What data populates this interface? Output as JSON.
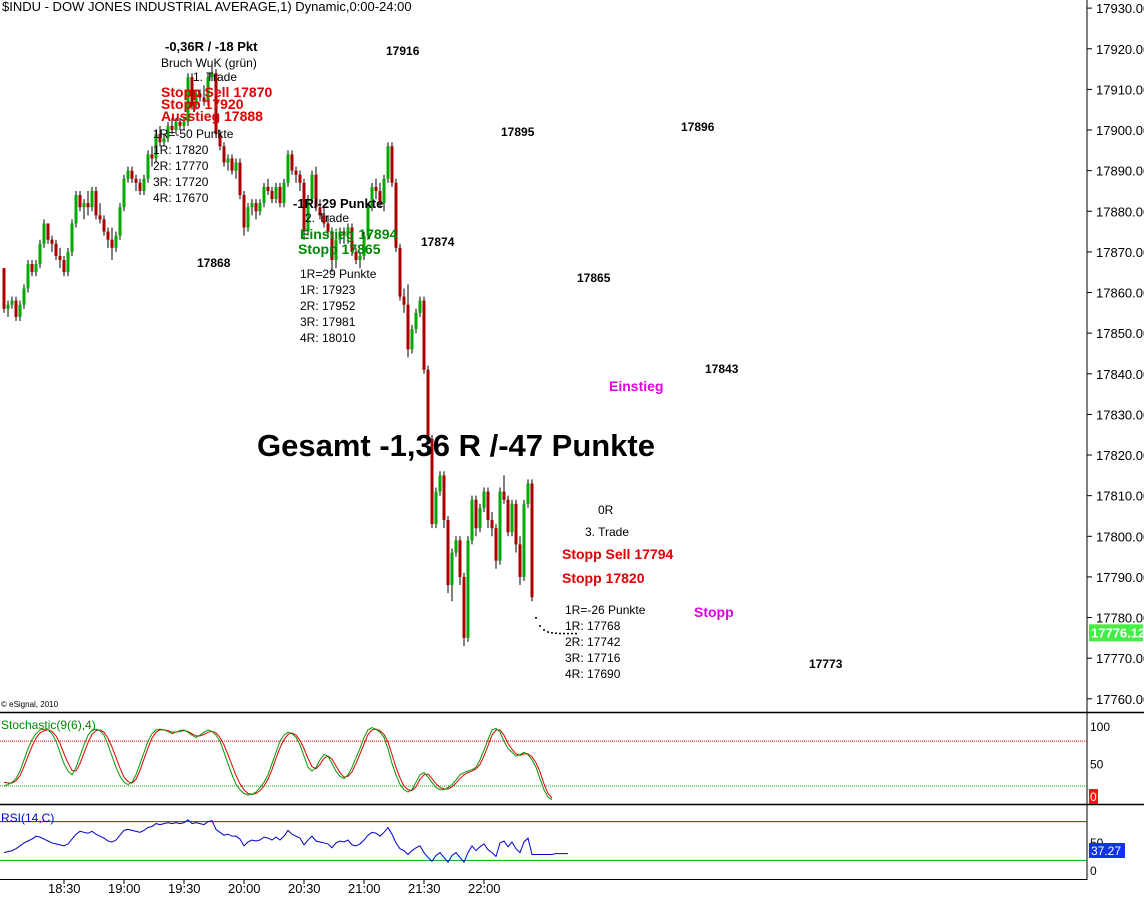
{
  "header": {
    "title": "$INDU - DOW JONES INDUSTRIAL AVERAGE,1) Dynamic,0:00-24:00",
    "copyright": "© eSignal, 2010"
  },
  "colors": {
    "up": "#00aa00",
    "down": "#aa0000",
    "wick": "#000000",
    "border": "#000000",
    "grid_red": "#cc0000",
    "grid_green": "#00aa00",
    "stoch_k": "#009900",
    "stoch_d": "#dd0000",
    "rsi": "#0000cc",
    "last_price_bg": "#44ee44",
    "rsi_value_bg": "#1133ee",
    "stoch_value_bg": "#ff1111",
    "annot_red": "#e00000",
    "annot_green": "#008800",
    "annot_magenta": "#e000e0"
  },
  "chart_data": {
    "type": "candlestick",
    "price_axis": {
      "ylim": [
        17757,
        17932
      ],
      "ticks": [
        17930,
        17920,
        17910,
        17900,
        17890,
        17880,
        17870,
        17860,
        17850,
        17840,
        17830,
        17820,
        17810,
        17800,
        17790,
        17780,
        17770,
        17760
      ],
      "tick_labels": [
        "17930.00",
        "17920.00",
        "17910.00",
        "17900.00",
        "17890.00",
        "17880.00",
        "17870.00",
        "17860.00",
        "17850.00",
        "17840.00",
        "17830.00",
        "17820.00",
        "17810.00",
        "17800.00",
        "17790.00",
        "17780.00",
        "17770.00",
        "17760.00"
      ],
      "last_price_value": 17776.12,
      "last_price_label": "17776.12"
    },
    "time_axis": {
      "start": "18:00",
      "interval_minutes": 2,
      "tick_minutes": [
        30,
        60,
        90,
        120,
        150,
        180,
        210,
        240
      ],
      "tick_labels": [
        "18:30",
        "19:00",
        "19:30",
        "20:00",
        "20:30",
        "21:00",
        "21:30",
        "22:00"
      ]
    },
    "candles_ohlc": [
      [
        17866,
        17866,
        17855,
        17856
      ],
      [
        17856,
        17858,
        17854,
        17857
      ],
      [
        17857,
        17859,
        17856,
        17858
      ],
      [
        17858,
        17859,
        17853,
        17854
      ],
      [
        17854,
        17858,
        17853,
        17857
      ],
      [
        17857,
        17862,
        17856,
        17861
      ],
      [
        17861,
        17868,
        17860,
        17867
      ],
      [
        17867,
        17868,
        17864,
        17865
      ],
      [
        17865,
        17868,
        17864,
        17867
      ],
      [
        17867,
        17873,
        17866,
        17872
      ],
      [
        17872,
        17878,
        17871,
        17877
      ],
      [
        17877,
        17877,
        17872,
        17873
      ],
      [
        17873,
        17874,
        17870,
        17872
      ],
      [
        17872,
        17873,
        17868,
        17869
      ],
      [
        17869,
        17871,
        17866,
        17868
      ],
      [
        17868,
        17869,
        17864,
        17865
      ],
      [
        17865,
        17871,
        17864,
        17870
      ],
      [
        17870,
        17878,
        17869,
        17877
      ],
      [
        17877,
        17885,
        17876,
        17884
      ],
      [
        17884,
        17885,
        17880,
        17881
      ],
      [
        17881,
        17883,
        17878,
        17882
      ],
      [
        17882,
        17885,
        17879,
        17881
      ],
      [
        17881,
        17886,
        17880,
        17885
      ],
      [
        17885,
        17886,
        17878,
        17879
      ],
      [
        17879,
        17882,
        17877,
        17878
      ],
      [
        17878,
        17879,
        17874,
        17875
      ],
      [
        17875,
        17876,
        17871,
        17873
      ],
      [
        17873,
        17876,
        17868,
        17871
      ],
      [
        17871,
        17875,
        17870,
        17874
      ],
      [
        17874,
        17882,
        17873,
        17881
      ],
      [
        17881,
        17889,
        17880,
        17888
      ],
      [
        17888,
        17891,
        17887,
        17890
      ],
      [
        17890,
        17891,
        17887,
        17888
      ],
      [
        17888,
        17889,
        17885,
        17887
      ],
      [
        17887,
        17888,
        17884,
        17885
      ],
      [
        17885,
        17889,
        17884,
        17888
      ],
      [
        17888,
        17895,
        17887,
        17894
      ],
      [
        17894,
        17896,
        17891,
        17893
      ],
      [
        17893,
        17900,
        17892,
        17899
      ],
      [
        17899,
        17901,
        17896,
        17897
      ],
      [
        17897,
        17899,
        17896,
        17898
      ],
      [
        17898,
        17902,
        17897,
        17901
      ],
      [
        17901,
        17903,
        17899,
        17900
      ],
      [
        17900,
        17903,
        17899,
        17902
      ],
      [
        17902,
        17903,
        17900,
        17901
      ],
      [
        17901,
        17903,
        17900,
        17902
      ],
      [
        17902,
        17914,
        17901,
        17913
      ],
      [
        17913,
        17914,
        17905,
        17906
      ],
      [
        17906,
        17910,
        17905,
        17909
      ],
      [
        17909,
        17910,
        17907,
        17908
      ],
      [
        17908,
        17911,
        17906,
        17907
      ],
      [
        17907,
        17914,
        17906,
        17913
      ],
      [
        17913,
        17916,
        17912,
        17914
      ],
      [
        17914,
        17915,
        17898,
        17899
      ],
      [
        17899,
        17900,
        17895,
        17896
      ],
      [
        17896,
        17897,
        17891,
        17892
      ],
      [
        17892,
        17894,
        17890,
        17893
      ],
      [
        17893,
        17894,
        17889,
        17890
      ],
      [
        17890,
        17893,
        17888,
        17892
      ],
      [
        17892,
        17893,
        17883,
        17884
      ],
      [
        17884,
        17885,
        17874,
        17876
      ],
      [
        17876,
        17882,
        17875,
        17881
      ],
      [
        17881,
        17883,
        17879,
        17882
      ],
      [
        17882,
        17883,
        17878,
        17880
      ],
      [
        17880,
        17883,
        17879,
        17882
      ],
      [
        17882,
        17887,
        17881,
        17886
      ],
      [
        17886,
        17888,
        17884,
        17885
      ],
      [
        17885,
        17886,
        17882,
        17883
      ],
      [
        17883,
        17887,
        17882,
        17886
      ],
      [
        17886,
        17887,
        17881,
        17882
      ],
      [
        17882,
        17888,
        17881,
        17887
      ],
      [
        17887,
        17895,
        17886,
        17894
      ],
      [
        17894,
        17895,
        17889,
        17890
      ],
      [
        17890,
        17891,
        17887,
        17889
      ],
      [
        17889,
        17890,
        17885,
        17887
      ],
      [
        17887,
        17888,
        17873,
        17875
      ],
      [
        17875,
        17884,
        17874,
        17883
      ],
      [
        17883,
        17890,
        17882,
        17889
      ],
      [
        17889,
        17891,
        17880,
        17881
      ],
      [
        17881,
        17883,
        17878,
        17879
      ],
      [
        17879,
        17881,
        17876,
        17877
      ],
      [
        17877,
        17879,
        17874,
        17875
      ],
      [
        17875,
        17876,
        17865,
        17868
      ],
      [
        17868,
        17874,
        17866,
        17873
      ],
      [
        17873,
        17876,
        17872,
        17875
      ],
      [
        17875,
        17876,
        17872,
        17874
      ],
      [
        17874,
        17877,
        17872,
        17876
      ],
      [
        17876,
        17877,
        17869,
        17870
      ],
      [
        17870,
        17871,
        17867,
        17868
      ],
      [
        17868,
        17870,
        17866,
        17869
      ],
      [
        17869,
        17875,
        17868,
        17874
      ],
      [
        17874,
        17882,
        17873,
        17881
      ],
      [
        17881,
        17887,
        17880,
        17886
      ],
      [
        17886,
        17888,
        17883,
        17885
      ],
      [
        17885,
        17887,
        17881,
        17882
      ],
      [
        17882,
        17889,
        17880,
        17888
      ],
      [
        17888,
        17897,
        17887,
        17896
      ],
      [
        17896,
        17897,
        17886,
        17887
      ],
      [
        17887,
        17888,
        17870,
        17871
      ],
      [
        17871,
        17872,
        17858,
        17859
      ],
      [
        17859,
        17861,
        17855,
        17857
      ],
      [
        17857,
        17862,
        17844,
        17846
      ],
      [
        17846,
        17852,
        17845,
        17851
      ],
      [
        17851,
        17856,
        17850,
        17855
      ],
      [
        17855,
        17859,
        17854,
        17858
      ],
      [
        17858,
        17859,
        17840,
        17841
      ],
      [
        17841,
        17842,
        17823,
        17824
      ],
      [
        17824,
        17825,
        17802,
        17803
      ],
      [
        17803,
        17812,
        17802,
        17811
      ],
      [
        17811,
        17816,
        17810,
        17815
      ],
      [
        17815,
        17816,
        17802,
        17804
      ],
      [
        17804,
        17805,
        17786,
        17788
      ],
      [
        17788,
        17797,
        17784,
        17796
      ],
      [
        17796,
        17800,
        17795,
        17799
      ],
      [
        17799,
        17800,
        17788,
        17790
      ],
      [
        17790,
        17791,
        17773,
        17775
      ],
      [
        17775,
        17800,
        17774,
        17799
      ],
      [
        17799,
        17810,
        17798,
        17809
      ],
      [
        17809,
        17810,
        17800,
        17802
      ],
      [
        17802,
        17808,
        17801,
        17807
      ],
      [
        17807,
        17812,
        17806,
        17811
      ],
      [
        17811,
        17812,
        17802,
        17804
      ],
      [
        17804,
        17806,
        17800,
        17802
      ],
      [
        17802,
        17803,
        17792,
        17794
      ],
      [
        17794,
        17812,
        17793,
        17811
      ],
      [
        17811,
        17815,
        17808,
        17809
      ],
      [
        17809,
        17810,
        17800,
        17801
      ],
      [
        17801,
        17809,
        17800,
        17808
      ],
      [
        17808,
        17809,
        17796,
        17798
      ],
      [
        17798,
        17800,
        17788,
        17790
      ],
      [
        17790,
        17809,
        17789,
        17808
      ],
      [
        17808,
        17814,
        17807,
        17813
      ],
      [
        17813,
        17814,
        17784,
        17785
      ]
    ],
    "tail_points": [
      17780,
      17778,
      17777,
      17776.5,
      17776.3,
      17776.2,
      17776.12,
      17776.12,
      17776.12,
      17776.12,
      17776.12
    ],
    "stochastic": {
      "label": "Stochastic(9(6),4)",
      "ylim": [
        0,
        100
      ],
      "ticks": [
        100,
        50
      ],
      "tick_labels": [
        "100",
        "50"
      ],
      "overbought": 80,
      "oversold": 20,
      "current_label": "0",
      "k": [
        20,
        22,
        25,
        30,
        40,
        55,
        70,
        82,
        90,
        95,
        96,
        95,
        90,
        80,
        65,
        50,
        40,
        35,
        45,
        60,
        75,
        88,
        95,
        96,
        94,
        88,
        75,
        60,
        45,
        33,
        25,
        22,
        25,
        35,
        50,
        65,
        80,
        90,
        95,
        96,
        95,
        93,
        90,
        92,
        94,
        95,
        92,
        88,
        85,
        88,
        92,
        95,
        93,
        88,
        80,
        65,
        50,
        35,
        22,
        15,
        10,
        8,
        9,
        12,
        18,
        25,
        35,
        50,
        65,
        80,
        88,
        92,
        90,
        85,
        75,
        60,
        45,
        40,
        45,
        55,
        62,
        60,
        50,
        40,
        33,
        30,
        35,
        45,
        58,
        70,
        85,
        95,
        98,
        96,
        92,
        85,
        70,
        50,
        35,
        22,
        15,
        12,
        15,
        25,
        35,
        38,
        32,
        25,
        18,
        15,
        15,
        18,
        22,
        28,
        35,
        38,
        40,
        42,
        45,
        55,
        68,
        82,
        95,
        97,
        92,
        80,
        70,
        65,
        60,
        62,
        65,
        62,
        55,
        45,
        30,
        15,
        5,
        2
      ],
      "d": [
        25,
        24,
        24,
        27,
        34,
        46,
        60,
        73,
        84,
        91,
        94,
        95,
        93,
        87,
        77,
        63,
        51,
        41,
        40,
        50,
        64,
        78,
        89,
        94,
        95,
        92,
        84,
        72,
        58,
        44,
        32,
        26,
        24,
        29,
        41,
        56,
        71,
        84,
        92,
        95,
        95,
        94,
        92,
        92,
        93,
        94,
        93,
        90,
        87,
        87,
        89,
        92,
        93,
        91,
        85,
        75,
        62,
        48,
        34,
        23,
        15,
        10,
        9,
        10,
        14,
        20,
        29,
        42,
        57,
        71,
        82,
        89,
        91,
        88,
        81,
        70,
        57,
        46,
        43,
        49,
        57,
        60,
        56,
        47,
        38,
        32,
        33,
        39,
        50,
        63,
        76,
        89,
        95,
        96,
        94,
        89,
        79,
        62,
        45,
        31,
        20,
        15,
        14,
        19,
        29,
        35,
        36,
        30,
        23,
        18,
        16,
        16,
        19,
        24,
        30,
        35,
        38,
        40,
        43,
        49,
        60,
        74,
        88,
        95,
        95,
        88,
        77,
        69,
        63,
        61,
        63,
        63,
        59,
        51,
        39,
        23,
        10,
        4
      ]
    },
    "rsi": {
      "label": "RSI(14,C)",
      "ylim": [
        0,
        100
      ],
      "ticks": [
        50,
        0
      ],
      "tick_labels": [
        "50",
        "0"
      ],
      "upper": 70,
      "lower": 30,
      "current_value": 37.27,
      "current_label": "37.27",
      "values": [
        38,
        39,
        40,
        42,
        45,
        48,
        50,
        52,
        55,
        54,
        52,
        50,
        48,
        47,
        46,
        45,
        47,
        52,
        57,
        60,
        59,
        58,
        60,
        57,
        55,
        53,
        50,
        49,
        51,
        56,
        61,
        62,
        61,
        60,
        59,
        61,
        64,
        65,
        68,
        67,
        68,
        69,
        68,
        69,
        68,
        69,
        72,
        68,
        69,
        68,
        67,
        70,
        71,
        62,
        59,
        56,
        57,
        55,
        55,
        52,
        45,
        49,
        51,
        50,
        51,
        54,
        53,
        51,
        54,
        51,
        55,
        61,
        57,
        55,
        53,
        46,
        51,
        55,
        50,
        49,
        48,
        47,
        43,
        48,
        50,
        49,
        51,
        46,
        45,
        47,
        51,
        56,
        59,
        58,
        55,
        59,
        64,
        57,
        48,
        42,
        40,
        36,
        40,
        43,
        45,
        38,
        33,
        29,
        35,
        38,
        33,
        28,
        35,
        38,
        33,
        28,
        38,
        45,
        40,
        44,
        47,
        41,
        38,
        34,
        48,
        50,
        44,
        49,
        42,
        38,
        49,
        53,
        36,
        36,
        36,
        36,
        36,
        36,
        37,
        37,
        37,
        37
      ]
    }
  },
  "annotations": {
    "pivots": [
      {
        "label": "17916",
        "color": "black"
      },
      {
        "label": "17895",
        "color": "black"
      },
      {
        "label": "17896",
        "color": "black"
      },
      {
        "label": "17868",
        "color": "black"
      },
      {
        "label": "17874",
        "color": "black"
      },
      {
        "label": "17865",
        "color": "black"
      },
      {
        "label": "17843",
        "color": "black"
      },
      {
        "label": "17773",
        "color": "black"
      }
    ],
    "trade1": {
      "result": "-0,36R / -18 Pkt",
      "reason": "Bruch WuK (grün)",
      "name": "1. Trade",
      "stop_sell": "Stopp Sell 17870",
      "stop": "Stopp 17920",
      "exit": "Ausstieg 17888",
      "r_lines": [
        "1R=-50 Punkte",
        "1R: 17820",
        "2R: 17770",
        "3R: 17720",
        "4R: 17670"
      ]
    },
    "trade2": {
      "result": "-1R/-29 Punkte",
      "name": "2. Trade",
      "entry": "Einstieg 17894",
      "stop": "Stopp 17865",
      "r_lines": [
        "1R=29 Punkte",
        "1R: 17923",
        "2R: 17952",
        "3R: 17981",
        "4R: 18010"
      ]
    },
    "trade3": {
      "result": "0R",
      "name": "3. Trade",
      "stop_sell": "Stopp Sell 17794",
      "stop": "Stopp 17820",
      "r_lines": [
        "1R=-26 Punkte",
        "1R: 17768",
        "2R: 17742",
        "3R: 17716",
        "4R: 17690"
      ]
    },
    "total": "Gesamt -1,36 R /-47 Punkte",
    "entry_marker": "Einstieg",
    "stop_marker": "Stopp"
  }
}
